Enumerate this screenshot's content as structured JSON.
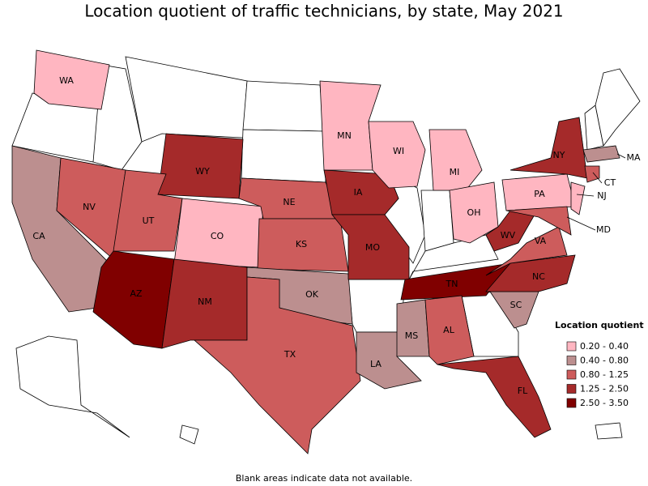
{
  "title": "Location quotient of traffic technicians, by state, May 2021",
  "states": [
    {
      "label": "WA",
      "color": "#ffb6c1"
    },
    {
      "label": "CA",
      "color": "#bc8f8f"
    },
    {
      "label": "NV",
      "color": "#cd5c5c"
    },
    {
      "label": "WY",
      "color": "#a52a2a"
    },
    {
      "label": "UT",
      "color": "#cd5c5c"
    },
    {
      "label": "CO",
      "color": "#ffb6c1"
    },
    {
      "label": "AZ",
      "color": "#800000"
    },
    {
      "label": "NM",
      "color": "#a52a2a"
    },
    {
      "label": "NE",
      "color": "#cd5c5c"
    },
    {
      "label": "KS",
      "color": "#cd5c5c"
    },
    {
      "label": "OK",
      "color": "#bc8f8f"
    },
    {
      "label": "TX",
      "color": "#cd5c5c"
    },
    {
      "label": "MN",
      "color": "#ffb6c1"
    },
    {
      "label": "IA",
      "color": "#a52a2a"
    },
    {
      "label": "MO",
      "color": "#a52a2a"
    },
    {
      "label": "LA",
      "color": "#bc8f8f"
    },
    {
      "label": "WI",
      "color": "#ffb6c1"
    },
    {
      "label": "MI",
      "color": "#ffb6c1"
    },
    {
      "label": "OH",
      "color": "#ffb6c1"
    },
    {
      "label": "TN",
      "color": "#800000"
    },
    {
      "label": "MS",
      "color": "#bc8f8f"
    },
    {
      "label": "AL",
      "color": "#cd5c5c"
    },
    {
      "label": "FL",
      "color": "#a52a2a"
    },
    {
      "label": "SC",
      "color": "#bc8f8f"
    },
    {
      "label": "NC",
      "color": "#a52a2a"
    },
    {
      "label": "VA",
      "color": "#cd5c5c"
    },
    {
      "label": "WV",
      "color": "#a52a2a"
    },
    {
      "label": "PA",
      "color": "#ffb6c1"
    },
    {
      "label": "NY",
      "color": "#a52a2a"
    },
    {
      "label": "NJ",
      "color": "#ffb6c1"
    },
    {
      "label": "MD",
      "color": "#cd5c5c"
    },
    {
      "label": "CT",
      "color": "#cd5c5c"
    },
    {
      "label": "MA",
      "color": "#bc8f8f"
    }
  ],
  "legend": {
    "title": "Location quotient",
    "items": [
      {
        "label": "0.20 - 0.40",
        "color": "#ffb6c1"
      },
      {
        "label": "0.40 - 0.80",
        "color": "#bc8f8f"
      },
      {
        "label": "0.80 - 1.25",
        "color": "#cd5c5c"
      },
      {
        "label": "1.25 - 2.50",
        "color": "#a52a2a"
      },
      {
        "label": "2.50 - 3.50",
        "color": "#800000"
      }
    ]
  },
  "note": "Blank areas indicate data not available."
}
